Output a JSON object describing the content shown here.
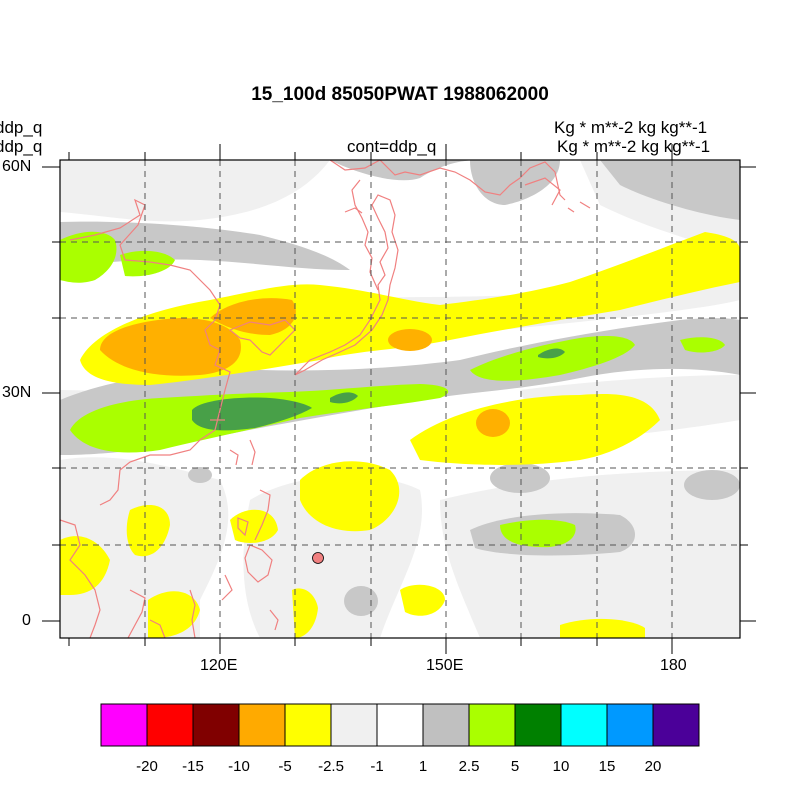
{
  "title": "15_100d 85050PWAT  1988062000",
  "left_labels": [
    "ddp_q",
    "ddp_q"
  ],
  "center_label": "cont=ddp_q",
  "right_labels": [
    "Kg  * m**-2 kg kg**-1",
    "Kg  * m**-2 kg kg**-1"
  ],
  "lat_labels": [
    "60N",
    "30N",
    "0"
  ],
  "lon_labels": [
    "120E",
    "150E",
    "180"
  ],
  "colorbar": {
    "colors": [
      "#ff00ff",
      "#ff0000",
      "#800000",
      "#ffaa00",
      "#ffff00",
      "#f0f0f0",
      "#ffffff",
      "#c0c0c0",
      "#aaff00",
      "#008000",
      "#00ffff",
      "#0099ff",
      "#4b0099"
    ],
    "labels": [
      "-20",
      "-15",
      "-10",
      "-5",
      "-2.5",
      "-1",
      "1",
      "2.5",
      "5",
      "10",
      "15",
      "20"
    ]
  },
  "marker_color": "#f08080",
  "coastline_color": "#f08080"
}
